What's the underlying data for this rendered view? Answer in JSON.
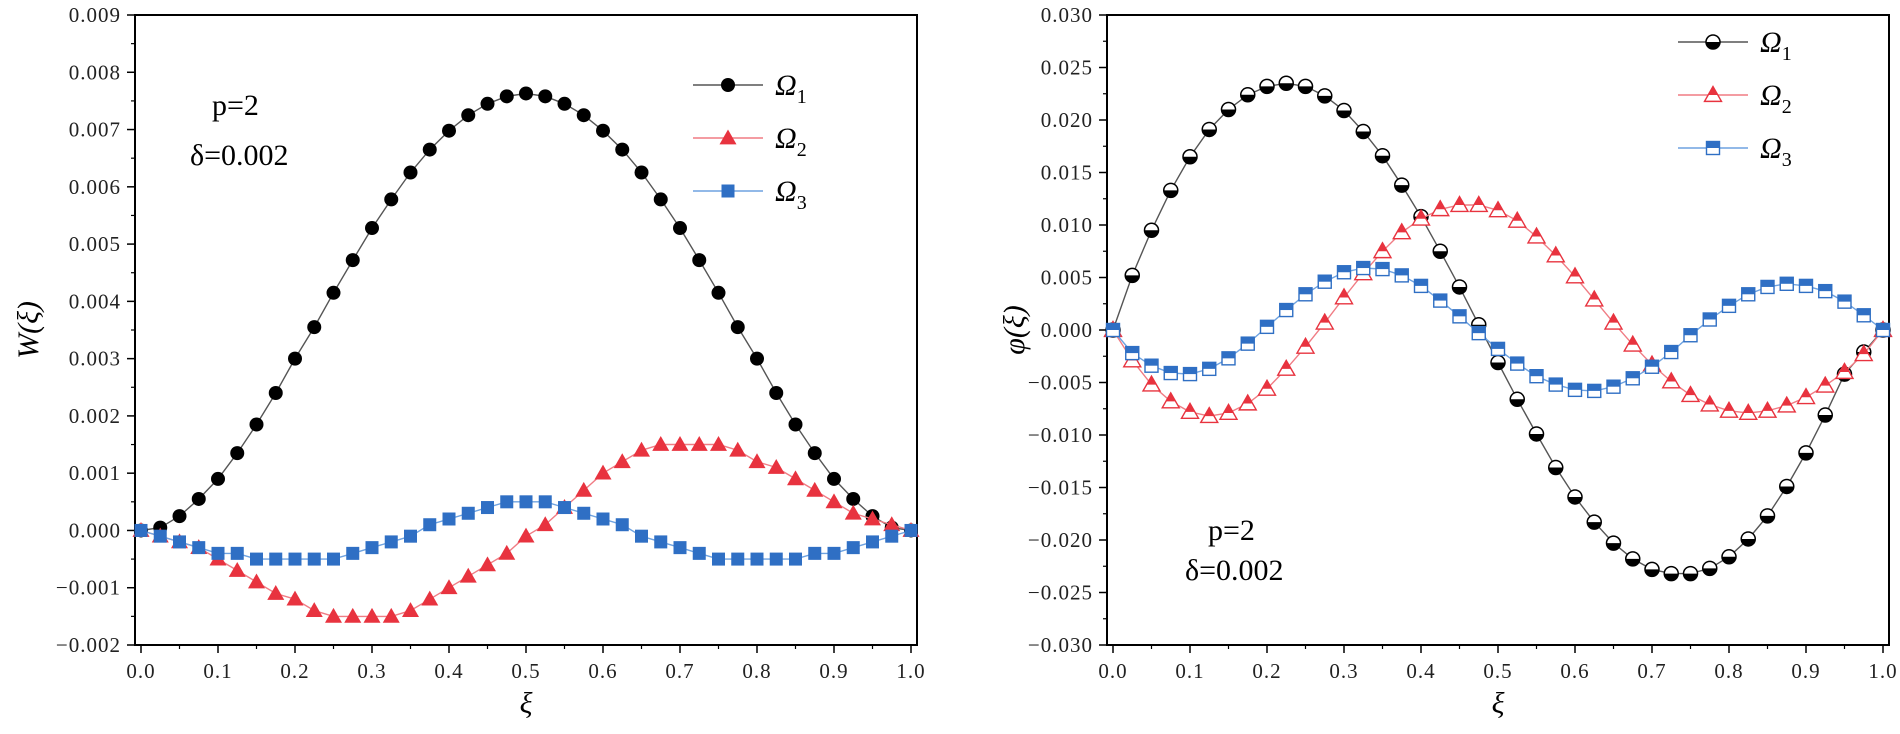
{
  "chart_data": [
    {
      "type": "line",
      "panel": "left",
      "xlabel": "ξ",
      "ylabel": "W(ξ)",
      "xlim": [
        0.0,
        1.0
      ],
      "ylim": [
        -0.002,
        0.009
      ],
      "xticks": [
        "0.0",
        "0.1",
        "0.2",
        "0.3",
        "0.4",
        "0.5",
        "0.6",
        "0.7",
        "0.8",
        "0.9",
        "1.0"
      ],
      "yticks": [
        "−0.002",
        "−0.001",
        "0.000",
        "0.001",
        "0.002",
        "0.003",
        "0.004",
        "0.005",
        "0.006",
        "0.007",
        "0.008",
        "0.009"
      ],
      "annotation": {
        "line1": "p=2",
        "line2": "δ=0.002"
      },
      "legend_position": "top-right",
      "x": [
        0.0,
        0.025,
        0.05,
        0.075,
        0.1,
        0.125,
        0.15,
        0.175,
        0.2,
        0.225,
        0.25,
        0.275,
        0.3,
        0.325,
        0.35,
        0.375,
        0.4,
        0.425,
        0.45,
        0.475,
        0.5,
        0.525,
        0.55,
        0.575,
        0.6,
        0.625,
        0.65,
        0.675,
        0.7,
        0.725,
        0.75,
        0.775,
        0.8,
        0.825,
        0.85,
        0.875,
        0.9,
        0.925,
        0.95,
        0.975,
        1.0
      ],
      "series": [
        {
          "name": "Ω",
          "subscript": "1",
          "color": "#000000",
          "line_color": "#555555",
          "marker": "circle-filled",
          "values": [
            0.0,
            5e-05,
            0.00025,
            0.00055,
            0.0009,
            0.00135,
            0.00185,
            0.0024,
            0.003,
            0.00355,
            0.00415,
            0.00472,
            0.00528,
            0.00578,
            0.00625,
            0.00665,
            0.00698,
            0.00725,
            0.00745,
            0.00758,
            0.00763,
            0.00758,
            0.00745,
            0.00725,
            0.00698,
            0.00665,
            0.00625,
            0.00578,
            0.00528,
            0.00472,
            0.00415,
            0.00355,
            0.003,
            0.0024,
            0.00185,
            0.00135,
            0.0009,
            0.00055,
            0.00025,
            5e-05,
            0.0
          ]
        },
        {
          "name": "Ω",
          "subscript": "2",
          "color": "#e8333f",
          "line_color": "#f07c84",
          "marker": "triangle-filled",
          "values": [
            0.0,
            -0.0001,
            -0.0002,
            -0.0003,
            -0.0005,
            -0.0007,
            -0.0009,
            -0.0011,
            -0.0012,
            -0.0014,
            -0.0015,
            -0.0015,
            -0.0015,
            -0.0015,
            -0.0014,
            -0.0012,
            -0.001,
            -0.0008,
            -0.0006,
            -0.0004,
            -0.0001,
            0.0001,
            0.0004,
            0.0007,
            0.001,
            0.0012,
            0.0014,
            0.0015,
            0.0015,
            0.0015,
            0.0015,
            0.0014,
            0.0012,
            0.0011,
            0.0009,
            0.0007,
            0.0005,
            0.0003,
            0.0002,
            0.0001,
            0.0
          ]
        },
        {
          "name": "Ω",
          "subscript": "3",
          "color": "#2f6fc4",
          "line_color": "#6ea2e0",
          "marker": "square-filled",
          "values": [
            0.0,
            -0.0001,
            -0.0002,
            -0.0003,
            -0.0004,
            -0.0004,
            -0.0005,
            -0.0005,
            -0.0005,
            -0.0005,
            -0.0005,
            -0.0004,
            -0.0003,
            -0.0002,
            -0.0001,
            0.0001,
            0.0002,
            0.0003,
            0.0004,
            0.0005,
            0.0005,
            0.0005,
            0.0004,
            0.0003,
            0.0002,
            0.0001,
            -0.0001,
            -0.0002,
            -0.0003,
            -0.0004,
            -0.0005,
            -0.0005,
            -0.0005,
            -0.0005,
            -0.0005,
            -0.0004,
            -0.0004,
            -0.0003,
            -0.0002,
            -0.0001,
            0.0
          ]
        }
      ]
    },
    {
      "type": "line",
      "panel": "right",
      "xlabel": "ξ",
      "ylabel": "φ(ξ)",
      "xlim": [
        0.0,
        1.0
      ],
      "ylim": [
        -0.03,
        0.03
      ],
      "xticks": [
        "0.0",
        "0.1",
        "0.2",
        "0.3",
        "0.4",
        "0.5",
        "0.6",
        "0.7",
        "0.8",
        "0.9",
        "1.0"
      ],
      "yticks": [
        "−0.030",
        "−0.025",
        "−0.020",
        "−0.015",
        "−0.010",
        "−0.005",
        "0.000",
        "0.005",
        "0.010",
        "0.015",
        "0.020",
        "0.025",
        "0.030"
      ],
      "annotation": {
        "line1": "p=2",
        "line2": "δ=0.002"
      },
      "legend_position": "top-right",
      "x": [
        0.0,
        0.025,
        0.05,
        0.075,
        0.1,
        0.125,
        0.15,
        0.175,
        0.2,
        0.225,
        0.25,
        0.275,
        0.3,
        0.325,
        0.35,
        0.375,
        0.4,
        0.425,
        0.45,
        0.475,
        0.5,
        0.525,
        0.55,
        0.575,
        0.6,
        0.625,
        0.65,
        0.675,
        0.7,
        0.725,
        0.75,
        0.775,
        0.8,
        0.825,
        0.85,
        0.875,
        0.9,
        0.925,
        0.95,
        0.975,
        1.0
      ],
      "series": [
        {
          "name": "Ω",
          "subscript": "1",
          "color": "#000000",
          "line_color": "#555555",
          "marker": "circle-half",
          "values": [
            0.0,
            0.0052,
            0.0095,
            0.0133,
            0.0165,
            0.0191,
            0.021,
            0.0224,
            0.0232,
            0.0235,
            0.0232,
            0.0223,
            0.0209,
            0.0189,
            0.0166,
            0.0138,
            0.0108,
            0.0075,
            0.0041,
            0.0005,
            -0.0031,
            -0.0066,
            -0.0099,
            -0.0131,
            -0.0159,
            -0.0183,
            -0.0203,
            -0.0218,
            -0.0228,
            -0.0232,
            -0.0232,
            -0.0227,
            -0.0216,
            -0.0199,
            -0.0177,
            -0.0149,
            -0.0117,
            -0.0081,
            -0.0042,
            -0.0021,
            0.0
          ]
        },
        {
          "name": "Ω",
          "subscript": "2",
          "color": "#e8333f",
          "line_color": "#f07c84",
          "marker": "triangle-half",
          "values": [
            0.0,
            -0.0029,
            -0.0052,
            -0.0068,
            -0.0078,
            -0.0082,
            -0.0079,
            -0.007,
            -0.0056,
            -0.0037,
            -0.0016,
            0.0007,
            0.0031,
            0.0054,
            0.0075,
            0.0093,
            0.0106,
            0.0115,
            0.0119,
            0.0119,
            0.0114,
            0.0104,
            0.0089,
            0.0071,
            0.0051,
            0.0029,
            0.0007,
            -0.0014,
            -0.0033,
            -0.0049,
            -0.0062,
            -0.0071,
            -0.0077,
            -0.0079,
            -0.0077,
            -0.0072,
            -0.0064,
            -0.0053,
            -0.004,
            -0.0023,
            0.0
          ]
        },
        {
          "name": "Ω",
          "subscript": "3",
          "color": "#2f6fc4",
          "line_color": "#6ea2e0",
          "marker": "square-half",
          "values": [
            0.0,
            -0.0022,
            -0.0034,
            -0.0041,
            -0.0042,
            -0.0037,
            -0.0027,
            -0.0013,
            0.0003,
            0.0019,
            0.0034,
            0.0046,
            0.0055,
            0.0059,
            0.0058,
            0.0052,
            0.0042,
            0.0028,
            0.0013,
            -0.0003,
            -0.0018,
            -0.0032,
            -0.0044,
            -0.0052,
            -0.0057,
            -0.0058,
            -0.0054,
            -0.0046,
            -0.0035,
            -0.0021,
            -0.0005,
            0.001,
            0.0023,
            0.0034,
            0.0041,
            0.0044,
            0.0042,
            0.0037,
            0.0027,
            0.0014,
            0.0
          ]
        }
      ]
    }
  ]
}
